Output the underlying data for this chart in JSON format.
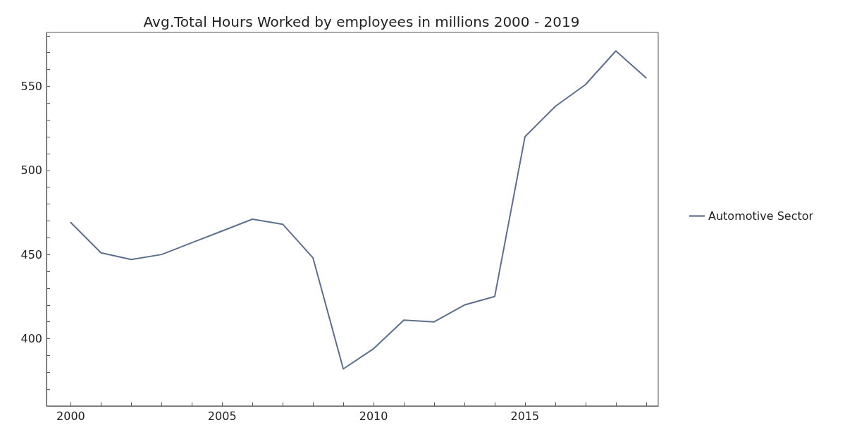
{
  "chart_data": {
    "type": "line",
    "title": "Avg.Total Hours Worked by employees in millions 2000 - 2019",
    "x": [
      2000,
      2001,
      2002,
      2003,
      2004,
      2005,
      2006,
      2007,
      2008,
      2009,
      2010,
      2011,
      2012,
      2013,
      2014,
      2015,
      2016,
      2017,
      2018,
      2019
    ],
    "series": [
      {
        "name": "Automotive Sector",
        "color": "#5d6f8f",
        "values": [
          469,
          451,
          447,
          450,
          457,
          464,
          471,
          468,
          448,
          382,
          394,
          411,
          410,
          420,
          425,
          520,
          538,
          551,
          571,
          555
        ]
      }
    ],
    "xlim": [
      1999.2,
      2019.4
    ],
    "xticks": [
      2000,
      {
        "value": 2001,
        "label": null
      },
      {
        "value": 2002,
        "label": null
      },
      {
        "value": 2003,
        "label": null
      },
      {
        "value": 2004,
        "label": null
      },
      2005,
      {
        "value": 2006,
        "label": null
      },
      {
        "value": 2007,
        "label": null
      },
      {
        "value": 2008,
        "label": null
      },
      {
        "value": 2009,
        "label": null
      },
      2010,
      {
        "value": 2011,
        "label": null
      },
      {
        "value": 2012,
        "label": null
      },
      {
        "value": 2013,
        "label": null
      },
      {
        "value": 2014,
        "label": null
      },
      2015,
      {
        "value": 2016,
        "label": null
      },
      {
        "value": 2017,
        "label": null
      },
      {
        "value": 2018,
        "label": null
      },
      {
        "value": 2019,
        "label": null
      }
    ],
    "ylim": [
      360,
      582
    ],
    "yticks": [
      {
        "value": 370,
        "label": null
      },
      {
        "value": 380,
        "label": null
      },
      {
        "value": 390,
        "label": null
      },
      400,
      {
        "value": 410,
        "label": null
      },
      {
        "value": 420,
        "label": null
      },
      {
        "value": 430,
        "label": null
      },
      {
        "value": 440,
        "label": null
      },
      450,
      {
        "value": 460,
        "label": null
      },
      {
        "value": 470,
        "label": null
      },
      {
        "value": 480,
        "label": null
      },
      {
        "value": 490,
        "label": null
      },
      500,
      {
        "value": 510,
        "label": null
      },
      {
        "value": 520,
        "label": null
      },
      {
        "value": 530,
        "label": null
      },
      {
        "value": 540,
        "label": null
      },
      550,
      {
        "value": 560,
        "label": null
      },
      {
        "value": 570,
        "label": null
      },
      {
        "value": 580,
        "label": null
      }
    ],
    "grid": false,
    "legend": "right",
    "marker": "none",
    "line_style": "solid"
  }
}
